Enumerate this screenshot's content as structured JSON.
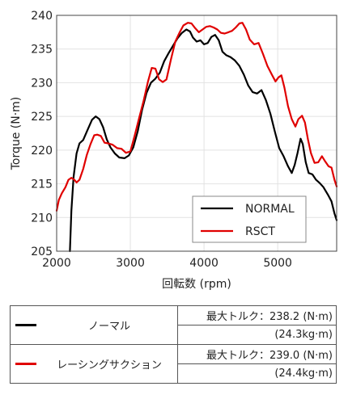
{
  "chart_data": {
    "type": "line",
    "title": "",
    "xlabel": "回転数 (rpm)",
    "ylabel": "Torque (N·m)",
    "xlim": [
      2000,
      5800
    ],
    "ylim": [
      205,
      240
    ],
    "xticks": [
      2000,
      3000,
      4000,
      5000
    ],
    "yticks": [
      205,
      210,
      215,
      220,
      225,
      230,
      235,
      240
    ],
    "grid": true,
    "legend_position": "bottom-right",
    "series": [
      {
        "name": "NORMAL",
        "color": "#000000",
        "points": [
          [
            2180,
            205
          ],
          [
            2200,
            211
          ],
          [
            2230,
            216
          ],
          [
            2270,
            219.5
          ],
          [
            2310,
            221
          ],
          [
            2360,
            221.5
          ],
          [
            2420,
            223
          ],
          [
            2480,
            224.5
          ],
          [
            2530,
            225
          ],
          [
            2580,
            224.6
          ],
          [
            2630,
            223.4
          ],
          [
            2680,
            221.6
          ],
          [
            2730,
            220.4
          ],
          [
            2790,
            219.5
          ],
          [
            2850,
            218.9
          ],
          [
            2920,
            218.8
          ],
          [
            2980,
            219.2
          ],
          [
            3040,
            220.4
          ],
          [
            3100,
            222.8
          ],
          [
            3160,
            226
          ],
          [
            3220,
            228.5
          ],
          [
            3280,
            230
          ],
          [
            3340,
            230.6
          ],
          [
            3400,
            231.5
          ],
          [
            3460,
            233.2
          ],
          [
            3520,
            234.4
          ],
          [
            3580,
            235.5
          ],
          [
            3640,
            236.6
          ],
          [
            3700,
            237.4
          ],
          [
            3760,
            237.9
          ],
          [
            3810,
            237.6
          ],
          [
            3850,
            236.7
          ],
          [
            3900,
            236.1
          ],
          [
            3950,
            236.3
          ],
          [
            4000,
            235.7
          ],
          [
            4050,
            235.9
          ],
          [
            4100,
            236.8
          ],
          [
            4150,
            237.1
          ],
          [
            4200,
            236.3
          ],
          [
            4250,
            234.6
          ],
          [
            4300,
            234.1
          ],
          [
            4360,
            233.8
          ],
          [
            4420,
            233.3
          ],
          [
            4480,
            232.5
          ],
          [
            4540,
            231.2
          ],
          [
            4600,
            229.6
          ],
          [
            4660,
            228.6
          ],
          [
            4720,
            228.4
          ],
          [
            4780,
            228.9
          ],
          [
            4840,
            227.4
          ],
          [
            4900,
            225.4
          ],
          [
            4960,
            222.8
          ],
          [
            5020,
            220.3
          ],
          [
            5080,
            219.1
          ],
          [
            5140,
            217.6
          ],
          [
            5190,
            216.6
          ],
          [
            5230,
            217.8
          ],
          [
            5270,
            219.6
          ],
          [
            5310,
            221.7
          ],
          [
            5340,
            220.9
          ],
          [
            5380,
            218.2
          ],
          [
            5420,
            216.6
          ],
          [
            5470,
            216.4
          ],
          [
            5520,
            215.6
          ],
          [
            5570,
            215.1
          ],
          [
            5620,
            214.5
          ],
          [
            5680,
            213.4
          ],
          [
            5730,
            212.4
          ],
          [
            5770,
            210.6
          ],
          [
            5800,
            209.6
          ]
        ]
      },
      {
        "name": "RSCT",
        "color": "#e00000",
        "points": [
          [
            2000,
            211
          ],
          [
            2030,
            212.6
          ],
          [
            2070,
            213.6
          ],
          [
            2120,
            214.5
          ],
          [
            2160,
            215.6
          ],
          [
            2200,
            215.9
          ],
          [
            2240,
            215.6
          ],
          [
            2270,
            215.2
          ],
          [
            2310,
            215.6
          ],
          [
            2360,
            217.2
          ],
          [
            2410,
            219.3
          ],
          [
            2460,
            220.9
          ],
          [
            2510,
            222.2
          ],
          [
            2550,
            222.3
          ],
          [
            2600,
            222.1
          ],
          [
            2650,
            221.1
          ],
          [
            2700,
            221
          ],
          [
            2760,
            220.8
          ],
          [
            2820,
            220.3
          ],
          [
            2880,
            220.2
          ],
          [
            2940,
            219.6
          ],
          [
            3000,
            219.8
          ],
          [
            3060,
            222.2
          ],
          [
            3120,
            224.8
          ],
          [
            3180,
            227.3
          ],
          [
            3240,
            230.2
          ],
          [
            3290,
            232.2
          ],
          [
            3340,
            232.1
          ],
          [
            3390,
            230.5
          ],
          [
            3440,
            230.1
          ],
          [
            3490,
            230.5
          ],
          [
            3550,
            233.4
          ],
          [
            3610,
            236.1
          ],
          [
            3670,
            237.5
          ],
          [
            3720,
            238.5
          ],
          [
            3780,
            238.9
          ],
          [
            3830,
            238.8
          ],
          [
            3880,
            238.1
          ],
          [
            3930,
            237.5
          ],
          [
            3980,
            237.9
          ],
          [
            4030,
            238.3
          ],
          [
            4080,
            238.4
          ],
          [
            4130,
            238.2
          ],
          [
            4180,
            237.9
          ],
          [
            4230,
            237.4
          ],
          [
            4280,
            237.3
          ],
          [
            4330,
            237.5
          ],
          [
            4380,
            237.7
          ],
          [
            4430,
            238.2
          ],
          [
            4480,
            238.8
          ],
          [
            4520,
            238.9
          ],
          [
            4570,
            237.9
          ],
          [
            4620,
            236.4
          ],
          [
            4680,
            235.7
          ],
          [
            4740,
            235.9
          ],
          [
            4800,
            234.3
          ],
          [
            4860,
            232.5
          ],
          [
            4920,
            231.2
          ],
          [
            4970,
            230.2
          ],
          [
            5010,
            230.8
          ],
          [
            5050,
            231.1
          ],
          [
            5090,
            229.3
          ],
          [
            5140,
            226.5
          ],
          [
            5190,
            224.6
          ],
          [
            5240,
            223.5
          ],
          [
            5280,
            224.6
          ],
          [
            5330,
            225.1
          ],
          [
            5370,
            224.1
          ],
          [
            5410,
            221.6
          ],
          [
            5450,
            219.6
          ],
          [
            5500,
            218.1
          ],
          [
            5550,
            218.2
          ],
          [
            5600,
            219.1
          ],
          [
            5640,
            218.4
          ],
          [
            5690,
            217.6
          ],
          [
            5730,
            217.4
          ],
          [
            5770,
            215.6
          ],
          [
            5800,
            214.6
          ]
        ]
      }
    ]
  },
  "legend": {
    "normal_label": "NORMAL",
    "rsct_label": "RSCT"
  },
  "spec_table": {
    "rows": [
      {
        "color": "#000000",
        "name": "ノーマル",
        "max_torque": "最大トルク：238.2 (N·m)",
        "kg": "(24.3kg·m)"
      },
      {
        "color": "#e00000",
        "name": "レーシングサクション",
        "max_torque": "最大トルク：239.0 (N·m)",
        "kg": "(24.4kg·m)"
      }
    ]
  }
}
